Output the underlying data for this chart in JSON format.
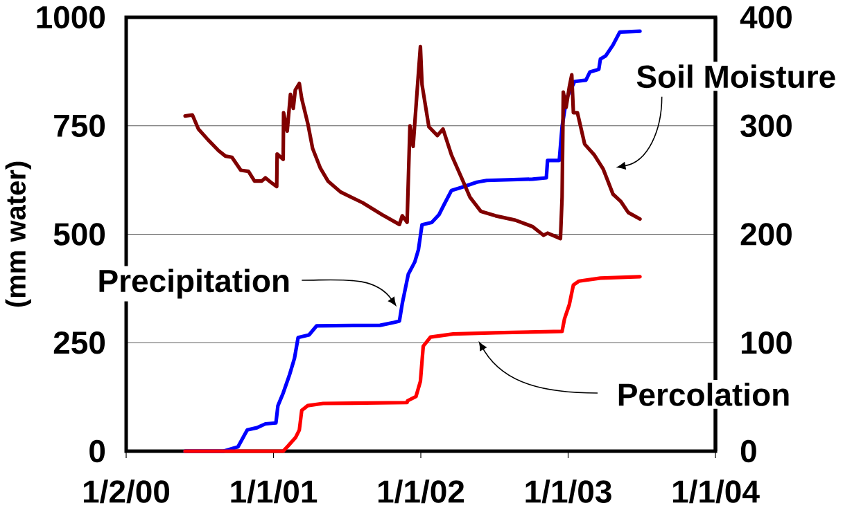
{
  "chart_data": {
    "type": "line",
    "ylabel": "(mm water)",
    "xlim": [
      "2000-01-02",
      "2004-01-01"
    ],
    "xticks": [
      {
        "value": "2000-01-02",
        "label": "1/2/00"
      },
      {
        "value": "2001-01-01",
        "label": "1/1/01"
      },
      {
        "value": "2002-01-01",
        "label": "1/1/02"
      },
      {
        "value": "2003-01-01",
        "label": "1/1/03"
      },
      {
        "value": "2004-01-01",
        "label": "1/1/04"
      }
    ],
    "ylim": [
      0,
      1000
    ],
    "yticks": [
      0,
      250,
      500,
      750,
      1000
    ],
    "y2lim": [
      0,
      400
    ],
    "y2ticks": [
      0,
      100,
      200,
      300,
      400
    ],
    "grid": "y",
    "series": [
      {
        "name": "Soil Moisture",
        "color": "#800000",
        "axis": "y2",
        "x": [
          "2000-05-27",
          "2000-06-14",
          "2000-06-29",
          "2000-07-23",
          "2000-08-18",
          "2000-09-04",
          "2000-09-20",
          "2000-10-12",
          "2000-10-31",
          "2000-11-15",
          "2000-12-03",
          "2000-12-12",
          "2000-12-25",
          "2001-01-09",
          "2001-01-10",
          "2001-01-25",
          "2001-01-26",
          "2001-02-04",
          "2001-02-12",
          "2001-02-19",
          "2001-02-24",
          "2001-03-06",
          "2001-03-12",
          "2001-03-27",
          "2001-04-08",
          "2001-04-27",
          "2001-05-16",
          "2001-06-16",
          "2001-08-10",
          "2001-09-27",
          "2001-11-09",
          "2001-11-16",
          "2001-11-28",
          "2001-12-05",
          "2001-12-13",
          "2001-12-17",
          "2001-12-26",
          "2001-12-31",
          "2002-01-04",
          "2002-01-21",
          "2002-02-11",
          "2002-02-25",
          "2002-03-18",
          "2002-04-12",
          "2002-05-03",
          "2002-05-30",
          "2002-07-05",
          "2002-08-23",
          "2002-10-05",
          "2002-11-01",
          "2002-11-11",
          "2002-12-13",
          "2002-12-17",
          "2002-12-20",
          "2002-12-27",
          "2003-01-04",
          "2003-01-10",
          "2003-01-14",
          "2003-01-24",
          "2003-02-11",
          "2003-03-07",
          "2003-03-29",
          "2003-04-22",
          "2003-05-12",
          "2003-05-30",
          "2003-06-28"
        ],
        "values": [
          309,
          310,
          297,
          287,
          277,
          272,
          271,
          259,
          258,
          249,
          249,
          252,
          248,
          244,
          274,
          269,
          312,
          295,
          329,
          316,
          333,
          339,
          325,
          302,
          279,
          261,
          249,
          239,
          229,
          218,
          209,
          217,
          211,
          300,
          281,
          302,
          348,
          373,
          338,
          299,
          291,
          297,
          273,
          252,
          234,
          221,
          217,
          213,
          207,
          199,
          201,
          196,
          234,
          331,
          317,
          336,
          347,
          312,
          312,
          283,
          273,
          260,
          237,
          230,
          220,
          214
        ]
      },
      {
        "name": "Precipitation",
        "color": "#0000ff",
        "x": [
          "2000-05-27",
          "2000-08-30",
          "2000-10-05",
          "2000-10-28",
          "2000-11-21",
          "2000-12-12",
          "2001-01-07",
          "2001-01-12",
          "2001-01-25",
          "2001-02-09",
          "2001-02-22",
          "2001-03-03",
          "2001-03-30",
          "2001-04-18",
          "2001-09-22",
          "2001-10-28",
          "2001-11-09",
          "2001-11-16",
          "2001-12-01",
          "2001-12-17",
          "2001-12-26",
          "2002-01-04",
          "2002-01-28",
          "2002-02-15",
          "2002-02-28",
          "2002-03-18",
          "2002-04-12",
          "2002-05-20",
          "2002-06-13",
          "2002-10-05",
          "2002-11-08",
          "2002-11-11",
          "2002-12-10",
          "2002-12-17",
          "2002-12-28",
          "2003-01-17",
          "2003-02-14",
          "2003-02-24",
          "2003-03-18",
          "2003-03-22",
          "2003-04-04",
          "2003-04-22",
          "2003-05-09",
          "2003-06-28"
        ],
        "values": [
          0,
          0,
          10,
          49,
          54,
          63,
          65,
          105,
          134,
          174,
          214,
          262,
          268,
          289,
          290,
          297,
          300,
          340,
          408,
          436,
          464,
          522,
          527,
          545,
          569,
          601,
          608,
          620,
          624,
          627,
          630,
          670,
          670,
          748,
          813,
          852,
          855,
          874,
          880,
          904,
          911,
          936,
          966,
          968
        ]
      },
      {
        "name": "Percolation",
        "color": "#ff0000",
        "x": [
          "2000-05-27",
          "2001-01-25",
          "2001-02-06",
          "2001-02-25",
          "2001-03-06",
          "2001-03-12",
          "2001-03-27",
          "2001-05-04",
          "2001-11-28",
          "2001-11-29",
          "2001-12-20",
          "2001-12-31",
          "2002-01-07",
          "2002-01-25",
          "2002-03-22",
          "2002-07-05",
          "2002-12-17",
          "2002-12-23",
          "2003-01-04",
          "2003-01-14",
          "2003-01-28",
          "2003-03-22",
          "2003-06-28"
        ],
        "values": [
          0,
          0,
          12,
          32,
          49,
          94,
          105,
          110,
          112,
          116,
          126,
          161,
          242,
          263,
          270,
          273,
          276,
          305,
          338,
          383,
          392,
          399,
          402
        ]
      }
    ]
  }
}
